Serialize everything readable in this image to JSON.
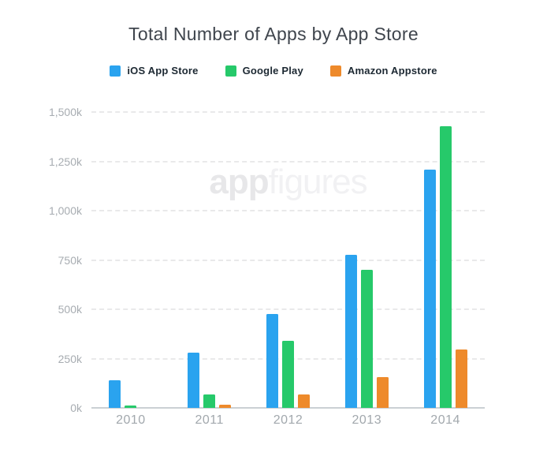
{
  "title": "Total Number of Apps by App Store",
  "watermark": {
    "prefix": "app",
    "suffix": "figures"
  },
  "chart_data": {
    "type": "bar",
    "title": "Total Number of Apps by App Store",
    "categories": [
      "2010",
      "2011",
      "2012",
      "2013",
      "2014"
    ],
    "series": [
      {
        "name": "iOS App Store",
        "color": "#2aa3ef",
        "values": [
          140,
          280,
          475,
          775,
          1210
        ]
      },
      {
        "name": "Google Play",
        "color": "#26c96a",
        "values": [
          13,
          70,
          340,
          700,
          1430
        ]
      },
      {
        "name": "Amazon Appstore",
        "color": "#ee8a2b",
        "values": [
          0,
          15,
          70,
          155,
          295
        ]
      }
    ],
    "unit": "k (thousands of apps)",
    "ylim": [
      0,
      1500
    ],
    "ytick_interval": 250,
    "ytick_labels": [
      "0k",
      "250k",
      "500k",
      "750k",
      "1,000k",
      "1,250k",
      "1,500k"
    ],
    "grid": "horizontal dashed gridlines, solid zero baseline",
    "legend_position": "top-center",
    "colors": {
      "title_text": "#3f454d",
      "legend_text": "#1c2832",
      "axis_text": "#a7acb1",
      "gridline": "#e9e9ea",
      "baseline": "#cbd0d4",
      "background": "#ffffff",
      "watermark": "#efeff1"
    }
  }
}
